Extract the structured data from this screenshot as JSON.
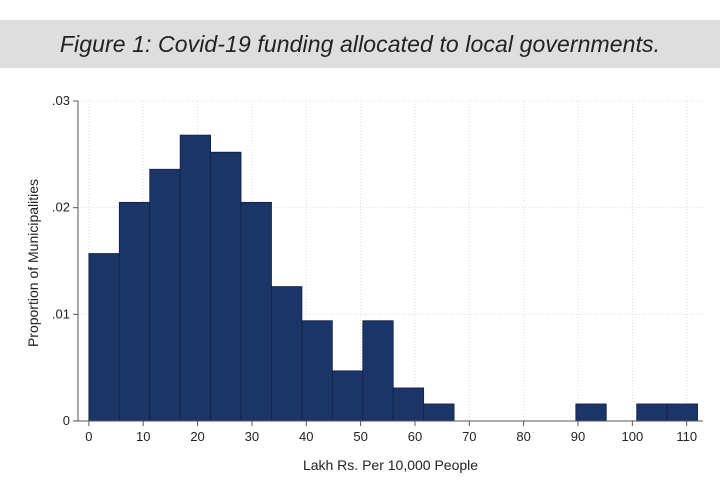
{
  "title": "Figure 1: Covid-19 funding allocated to local governments.",
  "chart_data": {
    "type": "bar",
    "subtype": "histogram",
    "xlabel": "Lakh Rs. Per 10,000 People",
    "ylabel": "Proportion of Municipalities",
    "xlim": [
      -2,
      113
    ],
    "ylim": [
      0,
      0.03
    ],
    "x_ticks": [
      0,
      10,
      20,
      30,
      40,
      50,
      60,
      70,
      80,
      90,
      100,
      110
    ],
    "x_tick_labels": [
      "0",
      "10",
      "20",
      "30",
      "40",
      "50",
      "60",
      "70",
      "80",
      "90",
      "100",
      "110"
    ],
    "y_ticks": [
      0,
      0.01,
      0.02,
      0.03
    ],
    "y_tick_labels": [
      "0",
      ".01",
      ".02",
      ".03"
    ],
    "bin_width": 5.6,
    "bin_start": 0,
    "values": [
      0.0157,
      0.0205,
      0.0236,
      0.0268,
      0.0252,
      0.0205,
      0.0126,
      0.0094,
      0.0047,
      0.0094,
      0.0031,
      0.0016,
      0,
      0,
      0,
      0,
      0.0016,
      0,
      0.0016,
      0.0016
    ],
    "grid": true,
    "colors": {
      "bar_fill": "#1b3566",
      "bar_edge": "#0f2147",
      "grid": "#dcdcdc",
      "axis": "#555555",
      "title_banner": "#dedede"
    }
  }
}
